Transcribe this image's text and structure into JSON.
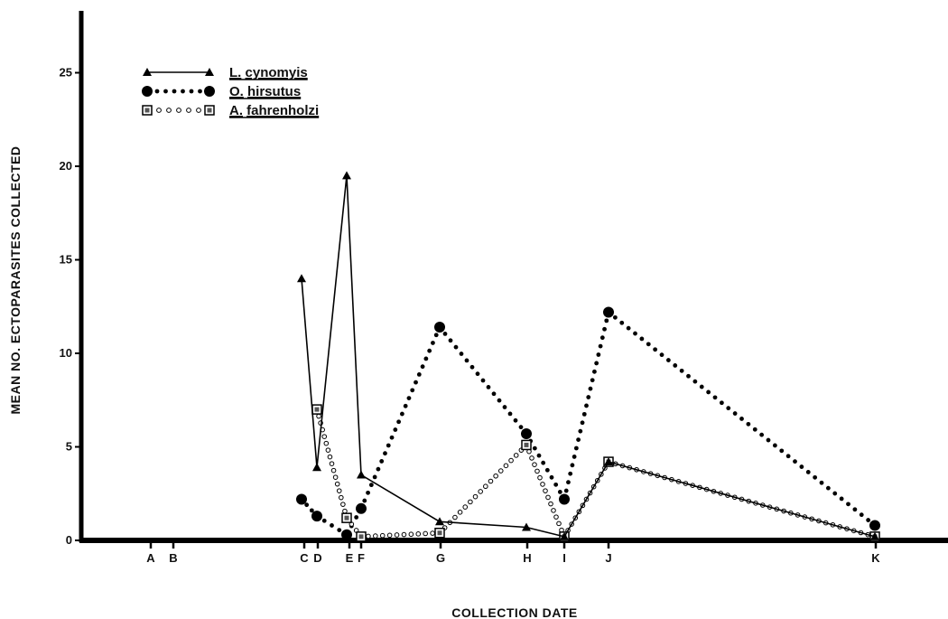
{
  "chart_data": {
    "type": "line",
    "xlabel": "COLLECTION DATE",
    "ylabel": "MEAN NO. ECTOPARASITES COLLECTED",
    "categories": [
      "A",
      "B",
      "C",
      "D",
      "E",
      "F",
      "G",
      "H",
      "I",
      "J",
      "K"
    ],
    "y_ticks": [
      0,
      5,
      10,
      15,
      20,
      25
    ],
    "ylim": [
      0,
      28
    ],
    "grid": false,
    "legend_position": "top-left",
    "series": [
      {
        "name": "L. cynomyis",
        "name_parts": [
          "L.",
          "cynomyis"
        ],
        "style": "solid-triangle",
        "points": [
          {
            "x": "C",
            "y": 14.0
          },
          {
            "x": "D",
            "y": 3.9
          },
          {
            "x": "E",
            "y": 19.5
          },
          {
            "x": "F",
            "y": 3.5
          },
          {
            "x": "G",
            "y": 1.0
          },
          {
            "x": "H",
            "y": 0.7
          },
          {
            "x": "I",
            "y": 0.2
          },
          {
            "x": "J",
            "y": 4.2
          },
          {
            "x": "K",
            "y": 0.2
          }
        ]
      },
      {
        "name": "O. hirsutus",
        "name_parts": [
          "O.",
          "hirsutus"
        ],
        "style": "dotted-circle",
        "points": [
          {
            "x": "C",
            "y": 2.2
          },
          {
            "x": "D",
            "y": 1.3
          },
          {
            "x": "E",
            "y": 0.3
          },
          {
            "x": "F",
            "y": 1.7
          },
          {
            "x": "G",
            "y": 11.4
          },
          {
            "x": "H",
            "y": 5.7
          },
          {
            "x": "I",
            "y": 2.2
          },
          {
            "x": "J",
            "y": 12.2
          },
          {
            "x": "K",
            "y": 0.8
          }
        ]
      },
      {
        "name": "A. fahrenholzi",
        "name_parts": [
          "A.",
          "fahrenholzi"
        ],
        "style": "open-circle-square",
        "points": [
          {
            "x": "D",
            "y": 7.0
          },
          {
            "x": "E",
            "y": 1.2
          },
          {
            "x": "F",
            "y": 0.2
          },
          {
            "x": "G",
            "y": 0.4
          },
          {
            "x": "H",
            "y": 5.1
          },
          {
            "x": "I",
            "y": 0.2
          },
          {
            "x": "J",
            "y": 4.2
          },
          {
            "x": "K",
            "y": 0.2
          }
        ]
      }
    ]
  }
}
